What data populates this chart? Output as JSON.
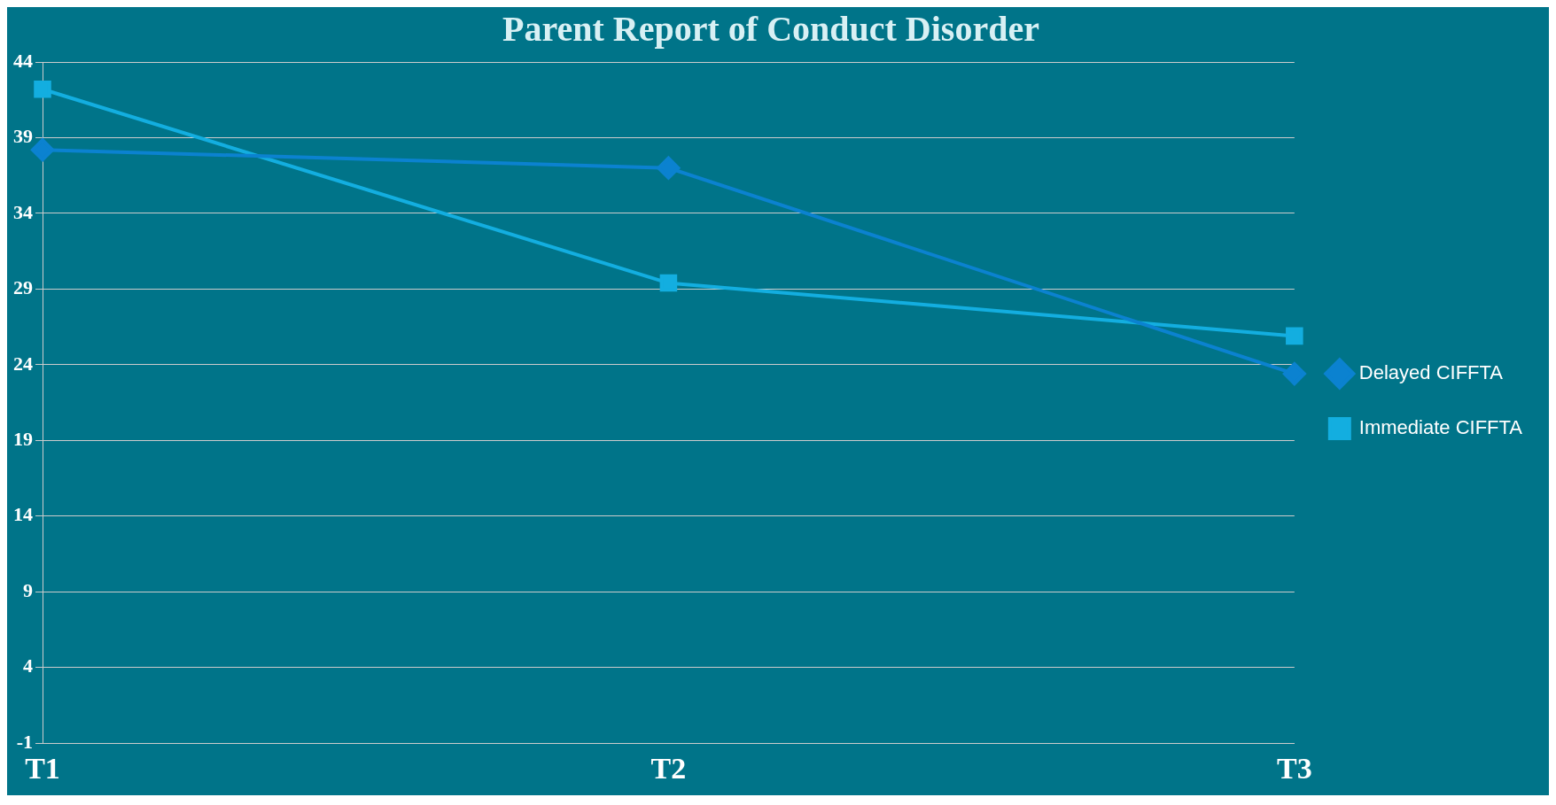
{
  "chart_data": {
    "type": "line",
    "title": "Parent Report of Conduct Disorder",
    "categories": [
      "T1",
      "T2",
      "T3"
    ],
    "series": [
      {
        "name": "Delayed CIFFTA",
        "color": "#0b82d0",
        "values": [
          38.2,
          37.0,
          23.4
        ],
        "marker": "diamond"
      },
      {
        "name": "Immediate CIFFTA",
        "color": "#13aee0",
        "values": [
          42.2,
          29.4,
          25.9
        ],
        "marker": "square"
      }
    ],
    "ylim": [
      -1,
      44
    ],
    "yticks": [
      -1,
      4,
      9,
      14,
      19,
      24,
      29,
      34,
      39,
      44
    ],
    "grid": "y",
    "legend": "right",
    "line_style": "solid"
  }
}
